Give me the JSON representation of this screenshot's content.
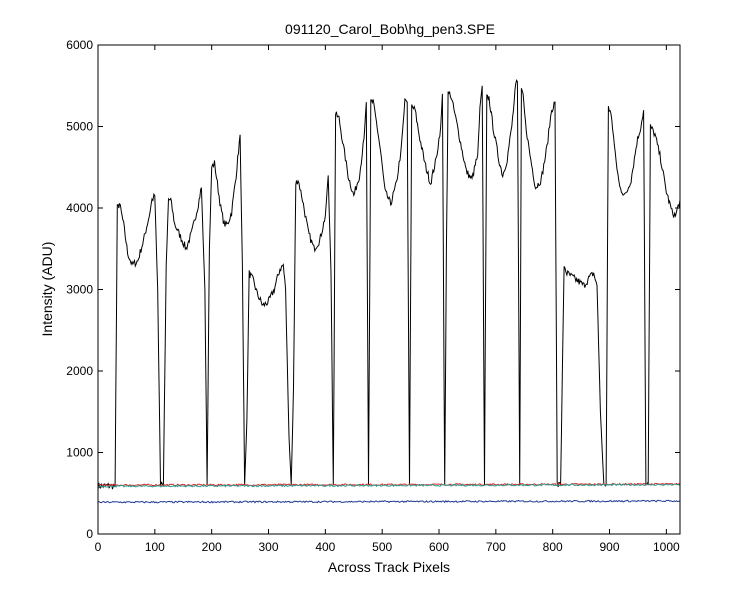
{
  "chart_data": {
    "type": "line",
    "title": "091120_Carol_Bob\\hg_pen3.SPE",
    "xlabel": "Across Track Pixels",
    "ylabel": "Intensity (ADU)",
    "xlim": [
      0,
      1024
    ],
    "ylim": [
      0,
      6000
    ],
    "grid": false,
    "legend": "none",
    "x_ticks": [
      "0",
      "100",
      "200",
      "300",
      "400",
      "500",
      "600",
      "700",
      "800",
      "900",
      "1000"
    ],
    "y_ticks": [
      "0",
      "1000",
      "2000",
      "3000",
      "4000",
      "5000",
      "6000"
    ],
    "series": [
      {
        "color": "#000000",
        "x": [
          0,
          30,
          34,
          38,
          45,
          52,
          60,
          70,
          80,
          90,
          95,
          100,
          105,
          110,
          115,
          120,
          124,
          128,
          135,
          145,
          155,
          165,
          175,
          182,
          188,
          192,
          196,
          200,
          205,
          210,
          216,
          222,
          228,
          235,
          243,
          250,
          254,
          258,
          262,
          266,
          270,
          274,
          280,
          290,
          300,
          310,
          320,
          326,
          330,
          336,
          340,
          344,
          348,
          352,
          360,
          370,
          380,
          390,
          400,
          405,
          410,
          414,
          418,
          424,
          432,
          440,
          450,
          460,
          468,
          472,
          476,
          480,
          484,
          490,
          497,
          505,
          515,
          525,
          533,
          540,
          544,
          548,
          552,
          558,
          565,
          575,
          585,
          595,
          603,
          606,
          610,
          613,
          616,
          620,
          628,
          638,
          648,
          658,
          668,
          672,
          676,
          680,
          684,
          688,
          695,
          705,
          712,
          720,
          728,
          735,
          738,
          742,
          745,
          748,
          752,
          760,
          770,
          780,
          790,
          798,
          804,
          808,
          814,
          820,
          825,
          835,
          845,
          855,
          865,
          872,
          878,
          884,
          890,
          894,
          898,
          904,
          910,
          918,
          928,
          938,
          948,
          955,
          960,
          964,
          968,
          972,
          980,
          990,
          1000,
          1010,
          1016,
          1024
        ],
        "y": [
          590,
          590,
          4000,
          4050,
          3800,
          3450,
          3300,
          3350,
          3600,
          3900,
          4100,
          4150,
          3000,
          600,
          600,
          3300,
          4100,
          4100,
          3800,
          3650,
          3500,
          3700,
          4000,
          4250,
          3000,
          600,
          3500,
          4500,
          4550,
          4300,
          4000,
          3800,
          3800,
          3950,
          4400,
          4900,
          3300,
          600,
          1400,
          3200,
          3150,
          3100,
          2950,
          2800,
          2850,
          3000,
          3250,
          3300,
          3000,
          1200,
          600,
          1800,
          4300,
          4350,
          4100,
          3700,
          3500,
          3600,
          3900,
          4400,
          3200,
          600,
          5150,
          5100,
          4750,
          4400,
          4150,
          4400,
          4850,
          5300,
          600,
          5300,
          5300,
          5050,
          4700,
          4200,
          4050,
          4300,
          4700,
          5300,
          5300,
          600,
          5250,
          5200,
          4900,
          4550,
          4300,
          4600,
          5000,
          5400,
          600,
          3500,
          5400,
          5400,
          5150,
          4800,
          4450,
          4350,
          4650,
          5200,
          5500,
          600,
          5350,
          5350,
          5000,
          4600,
          4400,
          4600,
          5000,
          5500,
          5550,
          600,
          5450,
          5400,
          5050,
          4650,
          4250,
          4350,
          4750,
          5200,
          5300,
          600,
          600,
          3300,
          3200,
          3150,
          3100,
          3050,
          3150,
          3200,
          3050,
          1500,
          600,
          600,
          5250,
          5100,
          4650,
          4250,
          4150,
          4350,
          4800,
          5000,
          5200,
          600,
          600,
          5000,
          4900,
          4600,
          4200,
          3950,
          3900,
          4100
        ]
      },
      {
        "color": "#d62828",
        "x": [
          0,
          1024
        ],
        "y": [
          600,
          612
        ]
      },
      {
        "color": "#2a9d8f",
        "x": [
          0,
          1024
        ],
        "y": [
          585,
          605
        ]
      },
      {
        "color": "#1f3a93",
        "x": [
          0,
          1024
        ],
        "y": [
          390,
          405
        ]
      }
    ]
  }
}
